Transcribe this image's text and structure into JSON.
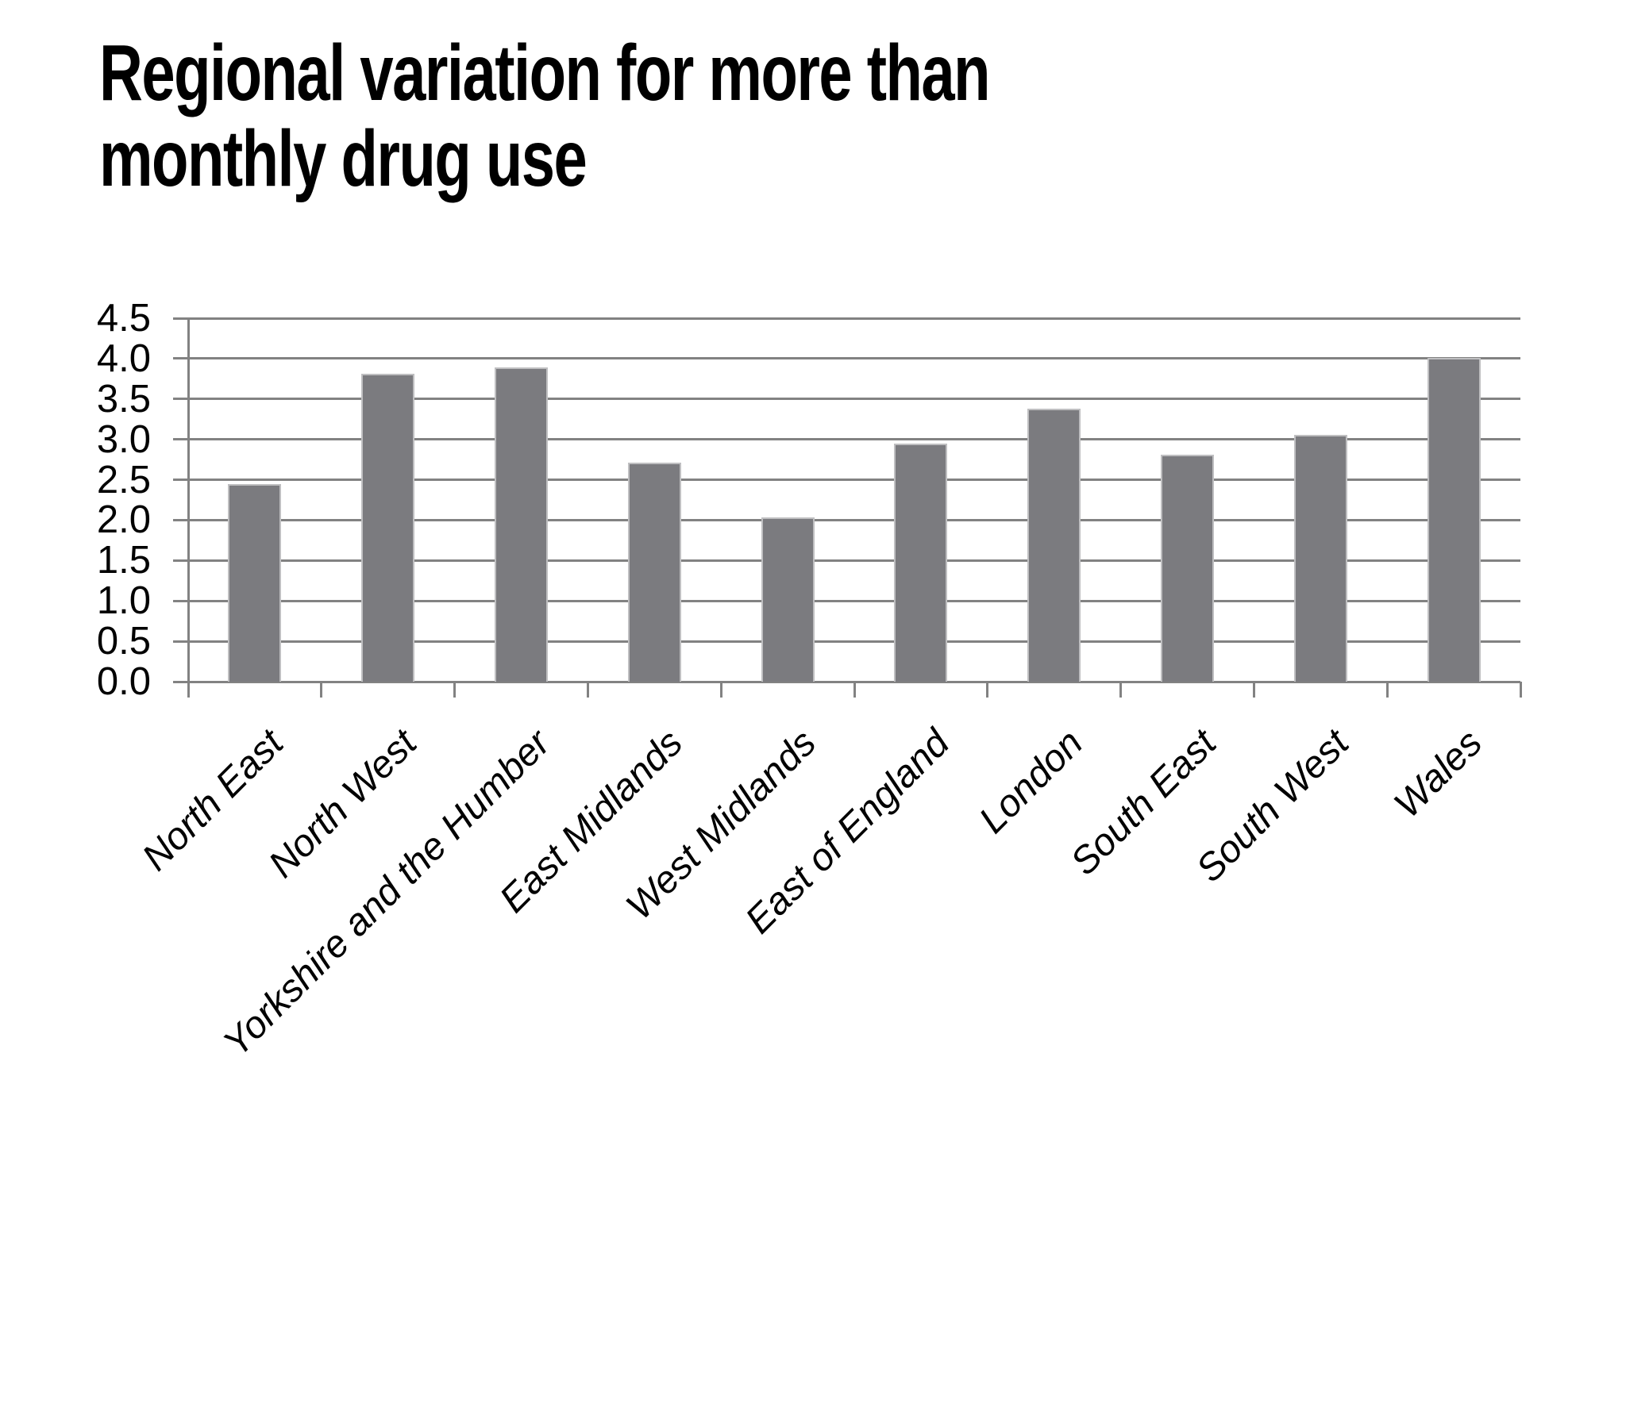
{
  "slide": {
    "title_line1": "Regional variation for more than",
    "title_line2": "monthly drug use"
  },
  "chart_data": {
    "type": "bar",
    "title": "Regional variation for more than monthly drug use",
    "categories": [
      "North East",
      "North West",
      "Yorkshire and the Humber",
      "East Midlands",
      "West Midlands",
      "East of England",
      "London",
      "South East",
      "South West",
      "Wales"
    ],
    "values": [
      2.45,
      3.81,
      3.89,
      2.71,
      2.03,
      2.95,
      3.38,
      2.81,
      3.06,
      4.01
    ],
    "xlabel": "",
    "ylabel": "",
    "ylim": [
      0,
      4.5
    ],
    "y_tick_step": 0.5,
    "y_tick_labels": [
      "0.0",
      "0.5",
      "1.0",
      "1.5",
      "2.0",
      "2.5",
      "3.0",
      "3.5",
      "4.0",
      "4.5"
    ],
    "grid": "horizontal",
    "legend": "none",
    "bar_color": "#7b7b7f",
    "bar_border_color": "#bfbfc1",
    "grid_color": "#828282",
    "text_color": "#000000",
    "background": "#ffffff"
  }
}
